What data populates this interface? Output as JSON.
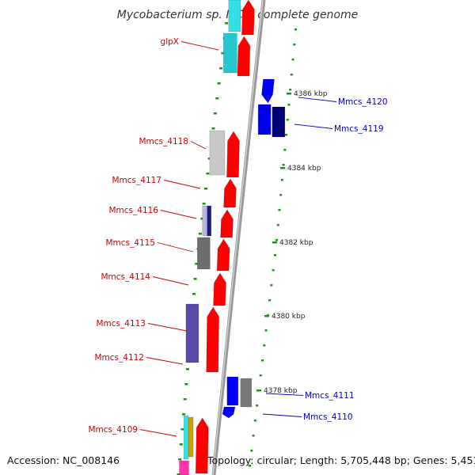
{
  "title": "Mycobacterium sp. MCS, complete genome",
  "footer": {
    "accession": "Accession: NC_008146",
    "topology": "Topology: circular; Length: 5,705,448 bp; Genes: 5,451"
  },
  "ruler": [
    {
      "kbp": 4386,
      "label": "4386 kbp"
    },
    {
      "kbp": 4384,
      "label": "4384 kbp"
    },
    {
      "kbp": 4382,
      "label": "4382 kbp"
    },
    {
      "kbp": 4380,
      "label": "4380 kbp"
    },
    {
      "kbp": 4378,
      "label": "4378 kbp"
    }
  ],
  "genes_forward": [
    {
      "name": "glpX"
    },
    {
      "name": "Mmcs_4118"
    },
    {
      "name": "Mmcs_4117"
    },
    {
      "name": "Mmcs_4116"
    },
    {
      "name": "Mmcs_4115"
    },
    {
      "name": "Mmcs_4114"
    },
    {
      "name": "Mmcs_4113"
    },
    {
      "name": "Mmcs_4112"
    },
    {
      "name": "Mmcs_4109"
    }
  ],
  "genes_reverse": [
    {
      "name": "Mmcs_4120"
    },
    {
      "name": "Mmcs_4119"
    },
    {
      "name": "Mmcs_4111"
    },
    {
      "name": "Mmcs_4110"
    }
  ],
  "colors": {
    "forward_strand": "#ff0000",
    "reverse_strand": "#0000ff",
    "backbone": "#999999",
    "ruler_ticks": "#008800",
    "forward_label": "#cc0000",
    "reverse_label": "#0000cc"
  }
}
